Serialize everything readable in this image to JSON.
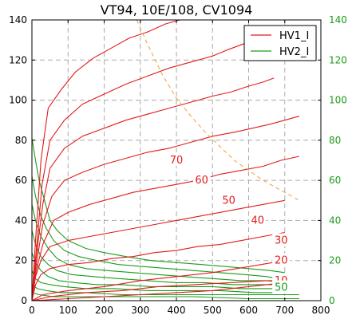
{
  "chart_data": {
    "type": "line",
    "title": "VT94, 10E/108, CV1094",
    "xlim": [
      0,
      800
    ],
    "ylim": [
      0,
      140
    ],
    "x_ticks": [
      "0",
      "100",
      "200",
      "300",
      "400",
      "500",
      "600",
      "700",
      "800"
    ],
    "y_ticks_left": [
      "0",
      "20",
      "40",
      "60",
      "80",
      "100",
      "120",
      "140"
    ],
    "y_ticks_right": [
      "0",
      "20",
      "40",
      "60",
      "80",
      "100",
      "120",
      "140"
    ],
    "grid": true,
    "legend_position": "top-right",
    "colors": {
      "hv1": "#e41a1c",
      "hv2": "#1a9c1a",
      "dissipation": "#f0a030",
      "grid": "#aaaaaa",
      "right_axis": "#1a9c1a",
      "label_red": "#e41a1c",
      "label_green": "#1a9c1a"
    },
    "series": [
      {
        "name": "HV1_I",
        "color": "#e41a1c",
        "style": "solid"
      },
      {
        "name": "HV2_I",
        "color": "#1a9c1a",
        "style": "solid"
      }
    ],
    "hv1_curves": [
      {
        "label": "70",
        "label_at": [
          400,
          70
        ],
        "points": [
          [
            0,
            0
          ],
          [
            10,
            30
          ],
          [
            25,
            70
          ],
          [
            45,
            96
          ],
          [
            80,
            105
          ],
          [
            120,
            114
          ],
          [
            170,
            121
          ],
          [
            220,
            126
          ],
          [
            270,
            131
          ],
          [
            320,
            134
          ],
          [
            370,
            138
          ],
          [
            410,
            140
          ]
        ]
      },
      {
        "label": "60",
        "label_at": [
          470,
          60
        ],
        "points": [
          [
            0,
            0
          ],
          [
            12,
            25
          ],
          [
            28,
            58
          ],
          [
            50,
            80
          ],
          [
            90,
            90
          ],
          [
            140,
            98
          ],
          [
            200,
            103
          ],
          [
            260,
            108
          ],
          [
            320,
            112
          ],
          [
            380,
            116
          ],
          [
            440,
            119
          ],
          [
            500,
            122
          ],
          [
            540,
            125
          ],
          [
            600,
            129
          ],
          [
            650,
            131
          ],
          [
            680,
            134
          ]
        ]
      },
      {
        "label": "50",
        "label_at": [
          545,
          50
        ],
        "points": [
          [
            0,
            0
          ],
          [
            12,
            22
          ],
          [
            30,
            48
          ],
          [
            50,
            66
          ],
          [
            90,
            76
          ],
          [
            140,
            82
          ],
          [
            200,
            86
          ],
          [
            260,
            90
          ],
          [
            320,
            93
          ],
          [
            380,
            96
          ],
          [
            440,
            99
          ],
          [
            500,
            102
          ],
          [
            550,
            104
          ],
          [
            600,
            107
          ],
          [
            640,
            109
          ],
          [
            670,
            111
          ]
        ]
      },
      {
        "label": "40",
        "label_at": [
          625,
          40
        ],
        "points": [
          [
            0,
            0
          ],
          [
            12,
            18
          ],
          [
            30,
            38
          ],
          [
            55,
            52
          ],
          [
            90,
            60
          ],
          [
            140,
            64
          ],
          [
            200,
            68
          ],
          [
            260,
            71
          ],
          [
            320,
            74
          ],
          [
            380,
            76
          ],
          [
            440,
            79
          ],
          [
            500,
            82
          ],
          [
            560,
            84
          ],
          [
            610,
            86
          ],
          [
            660,
            88
          ],
          [
            700,
            90
          ],
          [
            740,
            92
          ]
        ]
      },
      {
        "label": "30",
        "label_at": [
          690,
          30
        ],
        "points": [
          [
            0,
            0
          ],
          [
            12,
            15
          ],
          [
            30,
            28
          ],
          [
            60,
            40
          ],
          [
            100,
            44
          ],
          [
            160,
            48
          ],
          [
            220,
            51
          ],
          [
            280,
            54
          ],
          [
            340,
            56
          ],
          [
            400,
            58
          ],
          [
            460,
            60
          ],
          [
            520,
            63
          ],
          [
            580,
            65
          ],
          [
            640,
            67
          ],
          [
            690,
            70
          ],
          [
            740,
            72
          ]
        ]
      },
      {
        "label": "20",
        "label_at": [
          690,
          20
        ],
        "points": [
          [
            0,
            0
          ],
          [
            10,
            12
          ],
          [
            25,
            20
          ],
          [
            50,
            27
          ],
          [
            100,
            30
          ],
          [
            160,
            32
          ],
          [
            220,
            34
          ],
          [
            280,
            36
          ],
          [
            340,
            38
          ],
          [
            400,
            40
          ],
          [
            460,
            42
          ],
          [
            520,
            44
          ],
          [
            580,
            46
          ],
          [
            640,
            48
          ],
          [
            700,
            50
          ]
        ]
      },
      {
        "label": "10",
        "label_at": [
          690,
          10
        ],
        "points": [
          [
            0,
            0
          ],
          [
            10,
            8
          ],
          [
            25,
            13
          ],
          [
            50,
            16
          ],
          [
            100,
            18
          ],
          [
            160,
            19
          ],
          [
            220,
            21
          ],
          [
            280,
            22
          ],
          [
            340,
            24
          ],
          [
            400,
            25
          ],
          [
            460,
            27
          ],
          [
            520,
            28
          ],
          [
            580,
            30
          ],
          [
            640,
            32
          ],
          [
            700,
            34
          ]
        ]
      },
      {
        "label": "",
        "points": [
          [
            0,
            0
          ],
          [
            30,
            3
          ],
          [
            100,
            5
          ],
          [
            200,
            7
          ],
          [
            300,
            10
          ],
          [
            400,
            12
          ],
          [
            500,
            14
          ],
          [
            600,
            17
          ],
          [
            700,
            20
          ]
        ]
      },
      {
        "label": "",
        "points": [
          [
            0,
            0
          ],
          [
            50,
            2
          ],
          [
            150,
            4
          ],
          [
            250,
            5
          ],
          [
            350,
            7
          ],
          [
            450,
            8
          ],
          [
            550,
            9
          ],
          [
            650,
            10
          ],
          [
            700,
            10
          ]
        ]
      },
      {
        "label": "",
        "points": [
          [
            0,
            0
          ],
          [
            100,
            1
          ],
          [
            200,
            2
          ],
          [
            300,
            3
          ],
          [
            400,
            4
          ],
          [
            500,
            5
          ],
          [
            600,
            7
          ],
          [
            700,
            9
          ]
        ]
      }
    ],
    "hv2_curves": [
      {
        "label": "50",
        "label_at": [
          690,
          0
        ],
        "points": [
          [
            0,
            81
          ],
          [
            10,
            70
          ],
          [
            20,
            60
          ],
          [
            35,
            50
          ],
          [
            50,
            40
          ],
          [
            70,
            35
          ],
          [
            100,
            30
          ],
          [
            150,
            26
          ],
          [
            200,
            24
          ],
          [
            260,
            22
          ],
          [
            330,
            20
          ],
          [
            400,
            19
          ],
          [
            470,
            18
          ],
          [
            540,
            17
          ],
          [
            600,
            16
          ],
          [
            660,
            15
          ],
          [
            700,
            14
          ]
        ]
      },
      {
        "label": "",
        "points": [
          [
            0,
            62
          ],
          [
            10,
            52
          ],
          [
            25,
            42
          ],
          [
            40,
            36
          ],
          [
            60,
            30
          ],
          [
            90,
            25
          ],
          [
            130,
            22
          ],
          [
            180,
            20
          ],
          [
            240,
            18
          ],
          [
            310,
            17
          ],
          [
            380,
            16
          ],
          [
            450,
            15
          ],
          [
            520,
            14
          ],
          [
            590,
            13
          ],
          [
            650,
            12
          ],
          [
            680,
            11
          ]
        ]
      },
      {
        "label": "",
        "points": [
          [
            0,
            48
          ],
          [
            10,
            40
          ],
          [
            25,
            32
          ],
          [
            45,
            26
          ],
          [
            70,
            21
          ],
          [
            100,
            18
          ],
          [
            150,
            16
          ],
          [
            210,
            15
          ],
          [
            280,
            14
          ],
          [
            350,
            13
          ],
          [
            420,
            12
          ],
          [
            500,
            11
          ],
          [
            580,
            10
          ],
          [
            650,
            10
          ],
          [
            700,
            9
          ]
        ]
      },
      {
        "label": "",
        "points": [
          [
            0,
            35
          ],
          [
            10,
            28
          ],
          [
            25,
            22
          ],
          [
            45,
            18
          ],
          [
            70,
            15
          ],
          [
            110,
            13
          ],
          [
            170,
            12
          ],
          [
            240,
            11
          ],
          [
            320,
            10
          ],
          [
            400,
            9
          ],
          [
            480,
            9
          ],
          [
            560,
            8
          ],
          [
            640,
            8
          ],
          [
            700,
            8
          ]
        ]
      },
      {
        "label": "",
        "points": [
          [
            0,
            24
          ],
          [
            10,
            19
          ],
          [
            25,
            15
          ],
          [
            45,
            12
          ],
          [
            75,
            10
          ],
          [
            120,
            9
          ],
          [
            180,
            8
          ],
          [
            250,
            8
          ],
          [
            330,
            7
          ],
          [
            410,
            7
          ],
          [
            500,
            7
          ],
          [
            580,
            6
          ],
          [
            660,
            6
          ],
          [
            700,
            6
          ]
        ]
      },
      {
        "label": "",
        "points": [
          [
            0,
            15
          ],
          [
            10,
            11
          ],
          [
            25,
            9
          ],
          [
            50,
            8
          ],
          [
            90,
            7
          ],
          [
            150,
            6
          ],
          [
            230,
            6
          ],
          [
            320,
            5
          ],
          [
            420,
            5
          ],
          [
            520,
            5
          ],
          [
            620,
            4
          ],
          [
            700,
            4
          ]
        ]
      },
      {
        "label": "",
        "points": [
          [
            0,
            8
          ],
          [
            15,
            6
          ],
          [
            40,
            5
          ],
          [
            80,
            4
          ],
          [
            150,
            4
          ],
          [
            250,
            3
          ],
          [
            360,
            3
          ],
          [
            480,
            3
          ],
          [
            600,
            3
          ],
          [
            740,
            3
          ]
        ]
      },
      {
        "label": "",
        "points": [
          [
            0,
            4
          ],
          [
            20,
            3
          ],
          [
            60,
            2
          ],
          [
            150,
            2
          ],
          [
            300,
            2
          ],
          [
            450,
            2
          ],
          [
            600,
            1
          ],
          [
            740,
            1
          ]
        ]
      }
    ],
    "dissipation_curve": {
      "points": [
        [
          290,
          140
        ],
        [
          320,
          128
        ],
        [
          360,
          113
        ],
        [
          400,
          101
        ],
        [
          440,
          92
        ],
        [
          480,
          84
        ],
        [
          520,
          77
        ],
        [
          560,
          70
        ],
        [
          600,
          65
        ],
        [
          640,
          60
        ],
        [
          680,
          56
        ],
        [
          720,
          52
        ],
        [
          740,
          50
        ]
      ]
    }
  },
  "legend": {
    "hv1_label": "HV1_I",
    "hv2_label": "HV2_I"
  }
}
